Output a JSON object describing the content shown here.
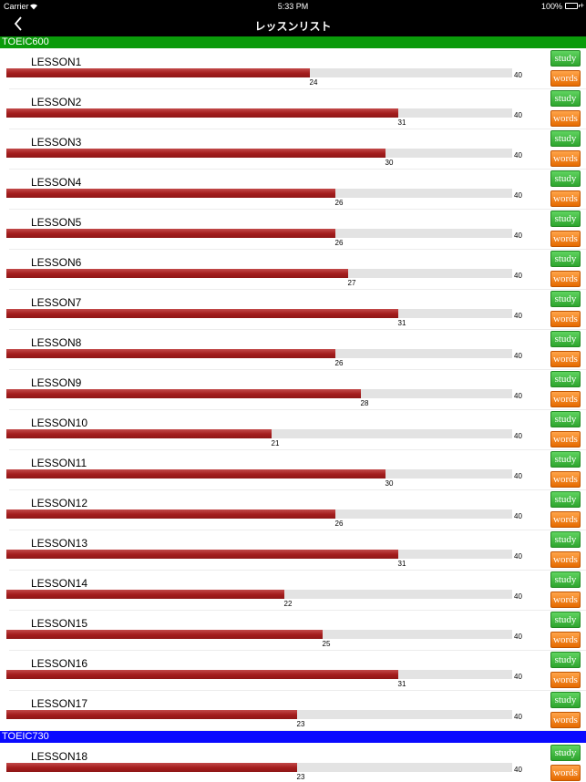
{
  "status_bar": {
    "carrier": "Carrier",
    "time": "5:33 PM",
    "battery": "100%",
    "wifi_icon": "wifi-icon",
    "battery_icon": "battery-icon"
  },
  "nav": {
    "title": "レッスンリスト",
    "back_icon": "chevron-left-icon"
  },
  "colors": {
    "toeic600": "#0a9b0a",
    "toeic730": "#0a0aff",
    "progress": "#a31c1c",
    "study": "#2ea52e",
    "words": "#e56a00"
  },
  "buttons": {
    "study": "study",
    "words": "words"
  },
  "sections": [
    {
      "title": "TOEIC600",
      "color": "#0a9b0a",
      "lessons": [
        {
          "name": "LESSON1",
          "score": "24",
          "total": "40"
        },
        {
          "name": "LESSON2",
          "score": "31",
          "total": "40"
        },
        {
          "name": "LESSON3",
          "score": "30",
          "total": "40"
        },
        {
          "name": "LESSON4",
          "score": "26",
          "total": "40"
        },
        {
          "name": "LESSON5",
          "score": "26",
          "total": "40"
        },
        {
          "name": "LESSON6",
          "score": "27",
          "total": "40"
        },
        {
          "name": "LESSON7",
          "score": "31",
          "total": "40"
        },
        {
          "name": "LESSON8",
          "score": "26",
          "total": "40"
        },
        {
          "name": "LESSON9",
          "score": "28",
          "total": "40"
        },
        {
          "name": "LESSON10",
          "score": "21",
          "total": "40"
        },
        {
          "name": "LESSON11",
          "score": "30",
          "total": "40"
        },
        {
          "name": "LESSON12",
          "score": "26",
          "total": "40"
        },
        {
          "name": "LESSON13",
          "score": "31",
          "total": "40"
        },
        {
          "name": "LESSON14",
          "score": "22",
          "total": "40"
        },
        {
          "name": "LESSON15",
          "score": "25",
          "total": "40"
        },
        {
          "name": "LESSON16",
          "score": "31",
          "total": "40"
        },
        {
          "name": "LESSON17",
          "score": "23",
          "total": "40"
        }
      ]
    },
    {
      "title": "TOEIC730",
      "color": "#0a0aff",
      "lessons": [
        {
          "name": "LESSON18",
          "score": "23",
          "total": "40"
        }
      ]
    }
  ]
}
